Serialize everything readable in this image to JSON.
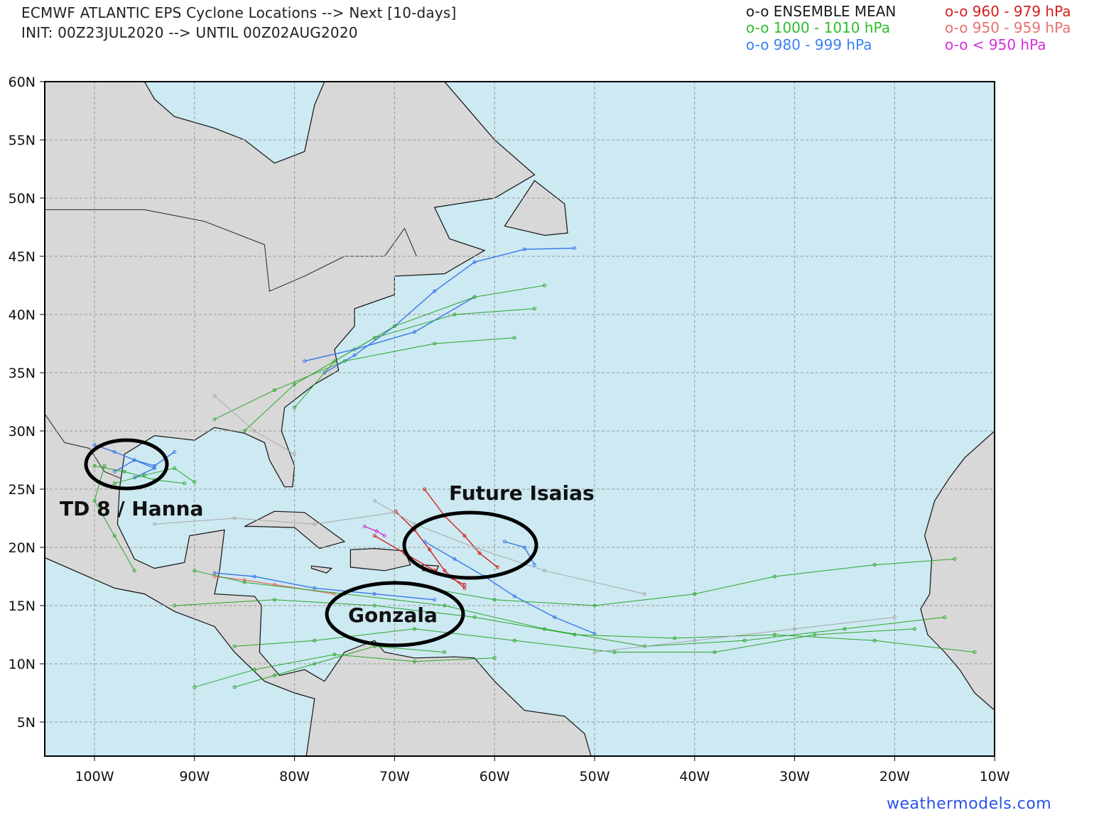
{
  "header": {
    "title": "ECMWF ATLANTIC EPS Cyclone Locations --> Next [10-days]",
    "subtitle": "INIT: 00Z23JUL2020 --> UNTIL 00Z02AUG2020"
  },
  "legend": [
    {
      "label": "o-o ENSEMBLE MEAN",
      "color": "#1a1a1a"
    },
    {
      "label": "o-o 1000 - 1010 hPa",
      "color": "#2ebd2e"
    },
    {
      "label": "o-o 980 - 999 hPa",
      "color": "#3a82f0"
    },
    {
      "label": "o-o 960 - 979 hPa",
      "color": "#d42020"
    },
    {
      "label": "o-o 950 - 959 hPa",
      "color": "#e87070"
    },
    {
      "label": "o-o < 950 hPa",
      "color": "#d030d8"
    }
  ],
  "map": {
    "lon_range": [
      -105,
      -10
    ],
    "lat_range": [
      2,
      60
    ],
    "ocean_color": "#cde9f2",
    "land_color": "#d8d8d8",
    "grid": true,
    "lon_ticks": [
      "100W",
      "90W",
      "80W",
      "70W",
      "60W",
      "50W",
      "40W",
      "30W",
      "20W",
      "10W"
    ],
    "lat_ticks": [
      "5N",
      "10N",
      "15N",
      "20N",
      "25N",
      "30N",
      "35N",
      "40N",
      "45N",
      "50N",
      "55N",
      "60N"
    ],
    "annotations": [
      {
        "label": "TD 8 / Hanna"
      },
      {
        "label": "Future Isaias"
      },
      {
        "label": "Gonzala"
      }
    ],
    "track_colors": {
      "green": "#2aa62a",
      "blue": "#3a78e8",
      "red": "#d42020",
      "salmon": "#e87070",
      "magenta": "#d030d8",
      "gray": "#a8a8a8"
    },
    "tracks": [
      {
        "cat": "red",
        "points": [
          [
            -67,
            25
          ],
          [
            -65,
            22.7
          ],
          [
            -63,
            21
          ],
          [
            -61.5,
            19.5
          ],
          [
            -59.7,
            18.3
          ]
        ]
      },
      {
        "cat": "red",
        "points": [
          [
            -69.9,
            23.1
          ],
          [
            -68,
            21.5
          ],
          [
            -66.5,
            19.8
          ],
          [
            -65,
            18
          ],
          [
            -63,
            16.5
          ]
        ]
      },
      {
        "cat": "red",
        "points": [
          [
            -72,
            21
          ],
          [
            -69,
            19.5
          ],
          [
            -66,
            18
          ],
          [
            -63,
            16.8
          ]
        ]
      },
      {
        "cat": "magenta",
        "points": [
          [
            -73,
            21.8
          ],
          [
            -71.8,
            21.4
          ],
          [
            -71,
            21
          ]
        ]
      },
      {
        "cat": "blue",
        "points": [
          [
            -59,
            20.5
          ],
          [
            -57,
            20
          ],
          [
            -56,
            18.5
          ]
        ]
      },
      {
        "cat": "blue",
        "points": [
          [
            -67,
            20.5
          ],
          [
            -64,
            19
          ],
          [
            -61,
            17.5
          ],
          [
            -58,
            15.8
          ],
          [
            -54,
            14
          ],
          [
            -50,
            12.6
          ]
        ]
      },
      {
        "cat": "blue",
        "points": [
          [
            -77,
            35
          ],
          [
            -74,
            36.5
          ],
          [
            -70,
            39
          ],
          [
            -66,
            42
          ],
          [
            -62,
            44.5
          ],
          [
            -57,
            45.6
          ],
          [
            -52,
            45.7
          ]
        ]
      },
      {
        "cat": "blue",
        "points": [
          [
            -79,
            36
          ],
          [
            -74,
            37
          ],
          [
            -68,
            38.5
          ],
          [
            -62,
            41.5
          ]
        ]
      },
      {
        "cat": "blue",
        "points": [
          [
            -100,
            28.8
          ],
          [
            -98,
            28.2
          ],
          [
            -96,
            27.5
          ],
          [
            -94,
            27
          ],
          [
            -92,
            28.2
          ]
        ]
      },
      {
        "cat": "blue",
        "points": [
          [
            -98,
            26.5
          ],
          [
            -96,
            27.5
          ],
          [
            -94,
            26.8
          ],
          [
            -96,
            26
          ]
        ]
      },
      {
        "cat": "blue",
        "points": [
          [
            -88,
            17.8
          ],
          [
            -84,
            17.5
          ],
          [
            -78,
            16.5
          ],
          [
            -72,
            16
          ],
          [
            -66,
            15.5
          ]
        ]
      },
      {
        "cat": "salmon",
        "points": [
          [
            -88,
            17.5
          ],
          [
            -85,
            17.2
          ],
          [
            -82,
            16.8
          ],
          [
            -76,
            16
          ]
        ]
      },
      {
        "cat": "green",
        "points": [
          [
            -15,
            14
          ],
          [
            -25,
            13
          ],
          [
            -35,
            12
          ],
          [
            -45,
            11.5
          ],
          [
            -55,
            13
          ],
          [
            -65,
            15
          ],
          [
            -75,
            16
          ],
          [
            -85,
            17
          ],
          [
            -90,
            18
          ]
        ]
      },
      {
        "cat": "green",
        "points": [
          [
            -18,
            13
          ],
          [
            -28,
            12.5
          ],
          [
            -38,
            11
          ],
          [
            -48,
            11
          ],
          [
            -58,
            12
          ],
          [
            -68,
            13
          ],
          [
            -78,
            12
          ],
          [
            -86,
            11.5
          ]
        ]
      },
      {
        "cat": "green",
        "points": [
          [
            -12,
            11
          ],
          [
            -22,
            12
          ],
          [
            -32,
            12.5
          ],
          [
            -42,
            12.2
          ],
          [
            -52,
            12.5
          ],
          [
            -62,
            14
          ],
          [
            -72,
            15
          ],
          [
            -82,
            15.5
          ],
          [
            -92,
            15
          ]
        ]
      },
      {
        "cat": "green",
        "points": [
          [
            -14,
            19
          ],
          [
            -22,
            18.5
          ],
          [
            -32,
            17.5
          ],
          [
            -40,
            16
          ],
          [
            -50,
            15
          ],
          [
            -60,
            15.5
          ],
          [
            -70,
            17
          ]
        ]
      },
      {
        "cat": "green",
        "points": [
          [
            -80,
            32
          ],
          [
            -76,
            36
          ],
          [
            -70,
            39
          ],
          [
            -62,
            41.5
          ],
          [
            -55,
            42.5
          ]
        ]
      },
      {
        "cat": "green",
        "points": [
          [
            -85,
            30
          ],
          [
            -80,
            34
          ],
          [
            -72,
            38
          ],
          [
            -64,
            40
          ],
          [
            -56,
            40.5
          ]
        ]
      },
      {
        "cat": "green",
        "points": [
          [
            -88,
            31
          ],
          [
            -82,
            33.5
          ],
          [
            -75,
            36
          ],
          [
            -66,
            37.5
          ],
          [
            -58,
            38
          ]
        ]
      },
      {
        "cat": "green",
        "points": [
          [
            -65,
            11
          ],
          [
            -72,
            11.5
          ],
          [
            -78,
            10
          ],
          [
            -82,
            9
          ],
          [
            -86,
            8
          ]
        ]
      },
      {
        "cat": "green",
        "points": [
          [
            -60,
            10.5
          ],
          [
            -68,
            10.2
          ],
          [
            -76,
            10.8
          ],
          [
            -84,
            9.5
          ],
          [
            -90,
            8
          ]
        ]
      },
      {
        "cat": "green",
        "points": [
          [
            -100,
            27
          ],
          [
            -97,
            26.5
          ],
          [
            -94,
            25.8
          ],
          [
            -91,
            25.5
          ]
        ]
      },
      {
        "cat": "green",
        "points": [
          [
            -98,
            25.5
          ],
          [
            -95,
            26.2
          ],
          [
            -92,
            26.8
          ],
          [
            -90,
            25.6
          ]
        ]
      },
      {
        "cat": "green",
        "points": [
          [
            -96,
            18
          ],
          [
            -98,
            21
          ],
          [
            -100,
            24
          ],
          [
            -99,
            27
          ]
        ]
      },
      {
        "cat": "gray",
        "points": [
          [
            -45,
            16
          ],
          [
            -55,
            18
          ],
          [
            -62,
            20
          ],
          [
            -68,
            22
          ],
          [
            -72,
            24
          ]
        ]
      },
      {
        "cat": "gray",
        "points": [
          [
            -20,
            14
          ],
          [
            -30,
            13
          ],
          [
            -40,
            12
          ],
          [
            -50,
            11
          ]
        ]
      },
      {
        "cat": "gray",
        "points": [
          [
            -70,
            23
          ],
          [
            -78,
            22
          ],
          [
            -86,
            22.5
          ],
          [
            -94,
            22
          ]
        ]
      },
      {
        "cat": "gray",
        "points": [
          [
            -88,
            33
          ],
          [
            -84,
            30
          ],
          [
            -80,
            28
          ]
        ]
      }
    ]
  },
  "footer": {
    "credit": "weathermodels.com"
  }
}
